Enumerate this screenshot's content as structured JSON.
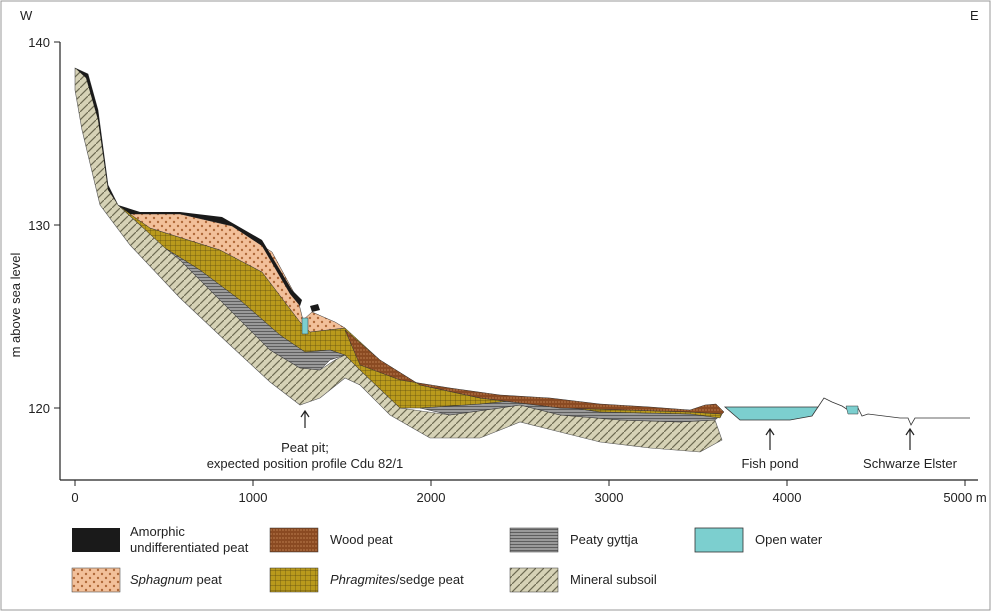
{
  "header": {
    "west": "W",
    "east": "E"
  },
  "axes": {
    "y_label": "m above sea level",
    "yticks": [
      120,
      130,
      140
    ],
    "xticks": [
      0,
      1000,
      2000,
      3000,
      4000,
      {
        "value": 5000,
        "label": "5000 m"
      }
    ]
  },
  "annotations": [
    {
      "lines": [
        "Peat pit;",
        "expected position profile Cdu 82/1"
      ]
    },
    {
      "lines": [
        "Fish pond"
      ]
    },
    {
      "lines": [
        "Schwarze Elster"
      ]
    }
  ],
  "legend": [
    {
      "lines": [
        "Amorphic",
        "undifferentiated peat"
      ]
    },
    {
      "italic": "Sphagnum",
      "text": " peat"
    },
    {
      "text": "Wood peat"
    },
    {
      "italic": "Phragmites",
      "text": "/sedge peat"
    },
    {
      "text": "Peaty gyttja"
    },
    {
      "text": "Mineral subsoil"
    },
    {
      "text": "Open water"
    }
  ]
}
